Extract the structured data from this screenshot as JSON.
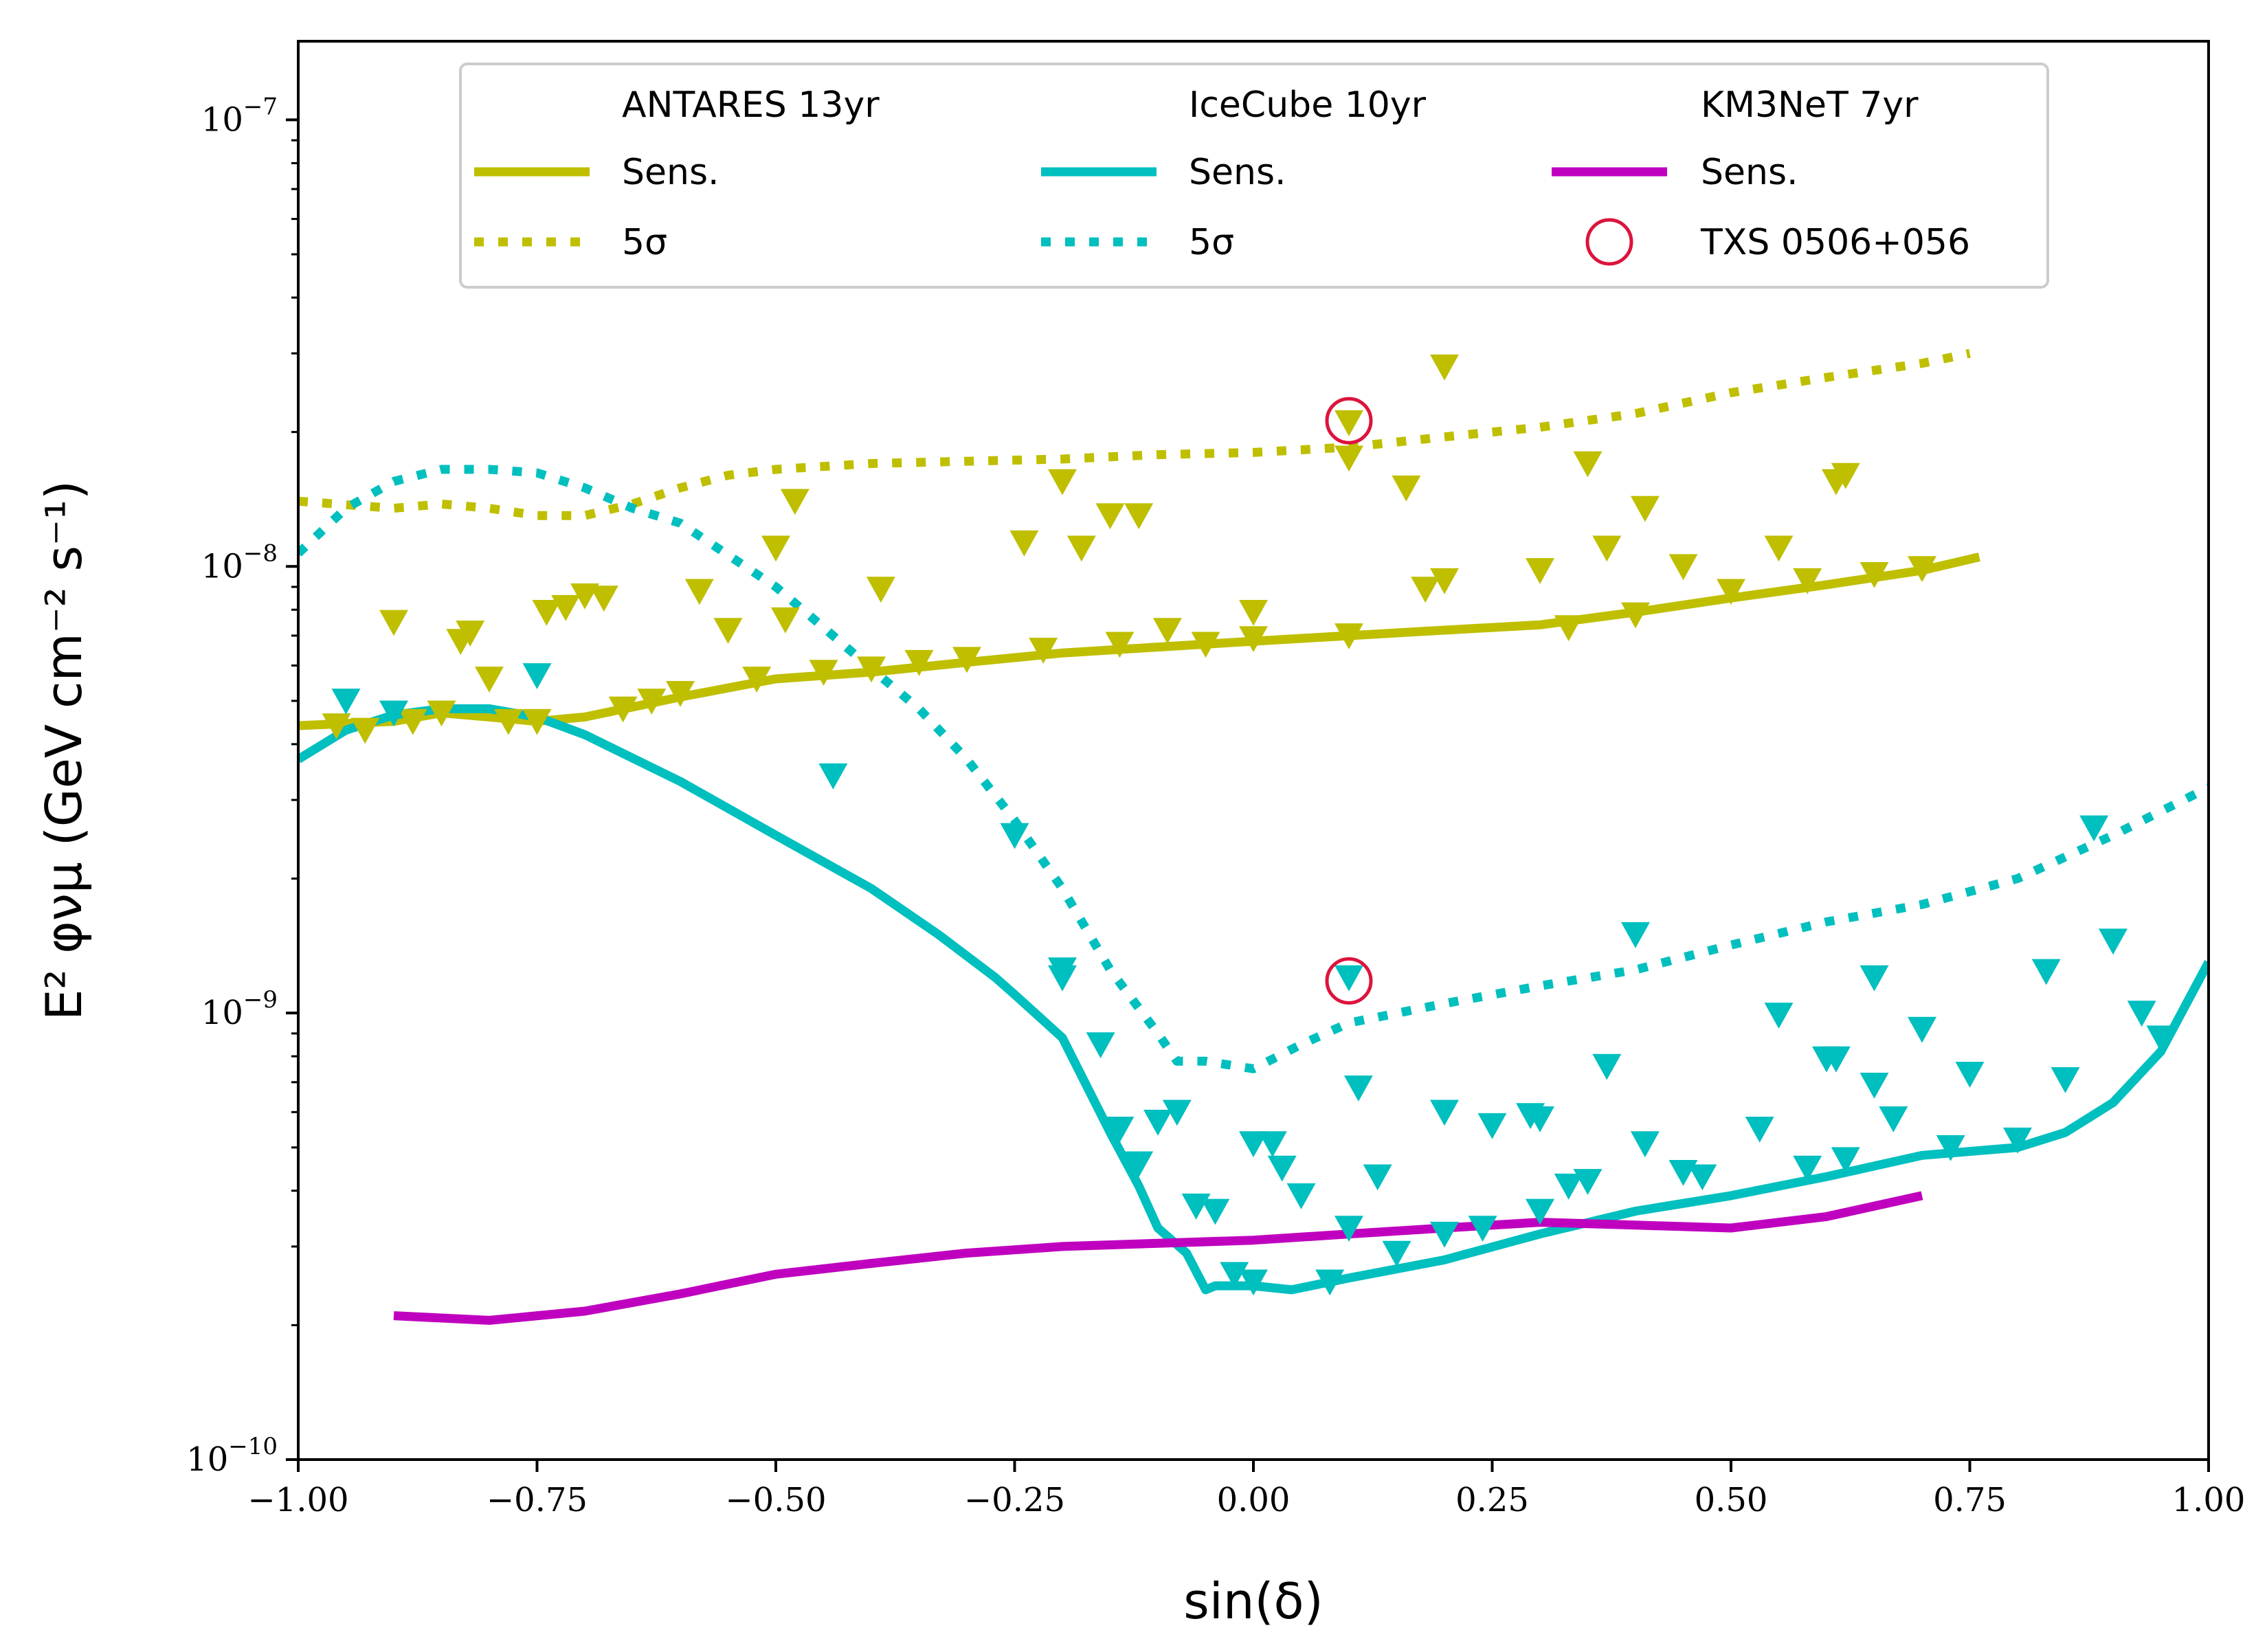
{
  "chart_data": {
    "type": "line",
    "title": "",
    "xlabel": "sin(δ)",
    "ylabel": "E² φνμ (GeV cm⁻² s⁻¹)",
    "y_scale": "log",
    "xlim": [
      -1.0,
      1.0
    ],
    "ylim": [
      1e-10,
      1.5e-07
    ],
    "x_ticks": [
      -1.0,
      -0.75,
      -0.5,
      -0.25,
      0.0,
      0.25,
      0.5,
      0.75,
      1.0
    ],
    "x_tick_labels": [
      "−1.00",
      "−0.75",
      "−0.50",
      "−0.25",
      "0.00",
      "0.25",
      "0.50",
      "0.75",
      "1.00"
    ],
    "y_ticks": [
      1e-10,
      1e-09,
      1e-08,
      1e-07
    ],
    "y_tick_labels": [
      {
        "base": "10",
        "exp": "−10"
      },
      {
        "base": "10",
        "exp": "−9"
      },
      {
        "base": "10",
        "exp": "−8"
      },
      {
        "base": "10",
        "exp": "−7"
      }
    ],
    "colors": {
      "antares": "#bfbf00",
      "icecube": "#00bfbf",
      "km3net": "#bf00bf",
      "txs": "#dc143c"
    },
    "legend": {
      "location": "upper center",
      "columns": [
        {
          "header": "ANTARES 13yr",
          "sens": "Sens.",
          "disc": "5σ"
        },
        {
          "header": "IceCube 10yr",
          "sens": "Sens.",
          "disc": "5σ"
        },
        {
          "header": "KM3NeT 7yr",
          "sens": "Sens.",
          "source": "TXS 0506+056"
        }
      ]
    },
    "series": [
      {
        "name": "ANTARES 13yr Sens.",
        "style": "solid",
        "color": "#bfbf00",
        "x": [
          -1.0,
          -0.9,
          -0.85,
          -0.8,
          -0.75,
          -0.7,
          -0.6,
          -0.5,
          -0.4,
          -0.3,
          -0.2,
          -0.1,
          0.0,
          0.1,
          0.2,
          0.3,
          0.4,
          0.5,
          0.6,
          0.7,
          0.76
        ],
        "y": [
          4.4e-09,
          4.5e-09,
          4.7e-09,
          4.6e-09,
          4.5e-09,
          4.6e-09,
          5.1e-09,
          5.6e-09,
          5.8e-09,
          6.1e-09,
          6.4e-09,
          6.6e-09,
          6.8e-09,
          7e-09,
          7.2e-09,
          7.4e-09,
          7.9e-09,
          8.5e-09,
          9.1e-09,
          9.8e-09,
          1.05e-08
        ]
      },
      {
        "name": "ANTARES 13yr 5σ",
        "style": "dotted",
        "color": "#bfbf00",
        "x": [
          -1.0,
          -0.9,
          -0.85,
          -0.8,
          -0.75,
          -0.7,
          -0.65,
          -0.6,
          -0.55,
          -0.5,
          -0.4,
          -0.3,
          -0.2,
          -0.1,
          0.0,
          0.1,
          0.2,
          0.3,
          0.4,
          0.5,
          0.6,
          0.7,
          0.75
        ],
        "y": [
          1.4e-08,
          1.35e-08,
          1.38e-08,
          1.35e-08,
          1.3e-08,
          1.3e-08,
          1.38e-08,
          1.5e-08,
          1.6e-08,
          1.65e-08,
          1.7e-08,
          1.72e-08,
          1.74e-08,
          1.78e-08,
          1.8e-08,
          1.85e-08,
          1.95e-08,
          2.05e-08,
          2.2e-08,
          2.45e-08,
          2.65e-08,
          2.85e-08,
          3e-08
        ]
      },
      {
        "name": "IceCube 10yr Sens.",
        "style": "solid",
        "color": "#00bfbf",
        "x": [
          -1.0,
          -0.95,
          -0.9,
          -0.85,
          -0.8,
          -0.75,
          -0.7,
          -0.6,
          -0.5,
          -0.4,
          -0.33,
          -0.27,
          -0.25,
          -0.2,
          -0.15,
          -0.12,
          -0.1,
          -0.07,
          -0.05,
          -0.04,
          0.0,
          0.04,
          0.1,
          0.2,
          0.3,
          0.4,
          0.5,
          0.6,
          0.7,
          0.8,
          0.85,
          0.9,
          0.95,
          1.0
        ],
        "y": [
          3.7e-09,
          4.3e-09,
          4.65e-09,
          4.8e-09,
          4.8e-09,
          4.6e-09,
          4.2e-09,
          3.3e-09,
          2.5e-09,
          1.9e-09,
          1.5e-09,
          1.2e-09,
          1.1e-09,
          8.8e-10,
          5.4e-10,
          4.1e-10,
          3.3e-10,
          2.9e-10,
          2.4e-10,
          2.45e-10,
          2.45e-10,
          2.4e-10,
          2.55e-10,
          2.8e-10,
          3.2e-10,
          3.6e-10,
          3.9e-10,
          4.3e-10,
          4.8e-10,
          5e-10,
          5.4e-10,
          6.3e-10,
          8.2e-10,
          1.3e-09
        ]
      },
      {
        "name": "IceCube 10yr 5σ",
        "style": "dotted",
        "color": "#00bfbf",
        "x": [
          -1.0,
          -0.95,
          -0.9,
          -0.85,
          -0.8,
          -0.75,
          -0.7,
          -0.65,
          -0.6,
          -0.5,
          -0.45,
          -0.4,
          -0.35,
          -0.3,
          -0.25,
          -0.2,
          -0.15,
          -0.1,
          -0.08,
          -0.05,
          0.0,
          0.05,
          0.1,
          0.2,
          0.3,
          0.4,
          0.5,
          0.6,
          0.7,
          0.8,
          0.9,
          1.0
        ],
        "y": [
          1.07e-08,
          1.35e-08,
          1.55e-08,
          1.65e-08,
          1.65e-08,
          1.62e-08,
          1.5e-08,
          1.35e-08,
          1.25e-08,
          9e-09,
          7.3e-09,
          5.9e-09,
          4.8e-09,
          3.7e-09,
          2.7e-09,
          1.9e-09,
          1.25e-09,
          9e-10,
          7.8e-10,
          7.8e-10,
          7.5e-10,
          8.5e-10,
          9.5e-10,
          1.05e-09,
          1.15e-09,
          1.25e-09,
          1.42e-09,
          1.6e-09,
          1.75e-09,
          2e-09,
          2.5e-09,
          3.2e-09
        ]
      },
      {
        "name": "KM3NeT 7yr Sens.",
        "style": "solid",
        "color": "#bf00bf",
        "x": [
          -0.9,
          -0.8,
          -0.7,
          -0.6,
          -0.5,
          -0.4,
          -0.3,
          -0.2,
          -0.1,
          0.0,
          0.1,
          0.2,
          0.3,
          0.4,
          0.5,
          0.6,
          0.7
        ],
        "y": [
          2.1e-10,
          2.05e-10,
          2.15e-10,
          2.35e-10,
          2.6e-10,
          2.75e-10,
          2.9e-10,
          3e-10,
          3.05e-10,
          3.1e-10,
          3.2e-10,
          3.3e-10,
          3.4e-10,
          3.35e-10,
          3.3e-10,
          3.5e-10,
          3.9e-10
        ]
      }
    ],
    "antares_limits": [
      [
        -0.96,
        4.4e-09
      ],
      [
        -0.93,
        4.3e-09
      ],
      [
        -0.9,
        7.5e-09
      ],
      [
        -0.88,
        4.5e-09
      ],
      [
        -0.85,
        4.7e-09
      ],
      [
        -0.83,
        6.8e-09
      ],
      [
        -0.82,
        7.1e-09
      ],
      [
        -0.8,
        5.6e-09
      ],
      [
        -0.78,
        4.5e-09
      ],
      [
        -0.75,
        4.5e-09
      ],
      [
        -0.74,
        7.9e-09
      ],
      [
        -0.72,
        8.1e-09
      ],
      [
        -0.7,
        8.6e-09
      ],
      [
        -0.68,
        8.5e-09
      ],
      [
        -0.66,
        4.8e-09
      ],
      [
        -0.63,
        5e-09
      ],
      [
        -0.6,
        5.2e-09
      ],
      [
        -0.58,
        8.8e-09
      ],
      [
        -0.55,
        7.2e-09
      ],
      [
        -0.52,
        5.6e-09
      ],
      [
        -0.5,
        1.1e-08
      ],
      [
        -0.49,
        7.6e-09
      ],
      [
        -0.48,
        1.4e-08
      ],
      [
        -0.45,
        5.8e-09
      ],
      [
        -0.4,
        5.9e-09
      ],
      [
        -0.39,
        8.9e-09
      ],
      [
        -0.35,
        6.1e-09
      ],
      [
        -0.3,
        6.2e-09
      ],
      [
        -0.24,
        1.13e-08
      ],
      [
        -0.22,
        6.5e-09
      ],
      [
        -0.2,
        1.55e-08
      ],
      [
        -0.18,
        1.1e-08
      ],
      [
        -0.15,
        1.3e-08
      ],
      [
        -0.14,
        6.7e-09
      ],
      [
        -0.12,
        1.3e-08
      ],
      [
        -0.09,
        7.2e-09
      ],
      [
        -0.05,
        6.7e-09
      ],
      [
        0.0,
        6.9e-09
      ],
      [
        0.0,
        7.9e-09
      ],
      [
        0.1,
        2.1e-08
      ],
      [
        0.1,
        1.75e-08
      ],
      [
        0.1,
        7e-09
      ],
      [
        0.16,
        1.5e-08
      ],
      [
        0.18,
        8.9e-09
      ],
      [
        0.2,
        2.8e-08
      ],
      [
        0.2,
        9.3e-09
      ],
      [
        0.3,
        9.8e-09
      ],
      [
        0.33,
        7.3e-09
      ],
      [
        0.35,
        1.7e-08
      ],
      [
        0.37,
        1.1e-08
      ],
      [
        0.4,
        7.8e-09
      ],
      [
        0.41,
        1.35e-08
      ],
      [
        0.45,
        1e-08
      ],
      [
        0.5,
        8.8e-09
      ],
      [
        0.55,
        1.1e-08
      ],
      [
        0.58,
        9.3e-09
      ],
      [
        0.61,
        1.55e-08
      ],
      [
        0.62,
        1.6e-08
      ],
      [
        0.65,
        9.6e-09
      ],
      [
        0.7,
        9.9e-09
      ]
    ],
    "icecube_limits": [
      [
        -0.95,
        5e-09
      ],
      [
        -0.9,
        4.7e-09
      ],
      [
        -0.75,
        5.7e-09
      ],
      [
        -0.44,
        3.4e-09
      ],
      [
        -0.25,
        2.5e-09
      ],
      [
        -0.2,
        1.25e-09
      ],
      [
        -0.2,
        1.2e-09
      ],
      [
        -0.16,
        8.5e-10
      ],
      [
        -0.14,
        5.5e-10
      ],
      [
        -0.12,
        4.6e-10
      ],
      [
        -0.1,
        5.7e-10
      ],
      [
        -0.08,
        6e-10
      ],
      [
        -0.06,
        3.7e-10
      ],
      [
        -0.04,
        3.6e-10
      ],
      [
        -0.02,
        2.6e-10
      ],
      [
        0.0,
        5.1e-10
      ],
      [
        0.02,
        5.1e-10
      ],
      [
        0.0,
        2.5e-10
      ],
      [
        0.03,
        4.5e-10
      ],
      [
        0.05,
        3.9e-10
      ],
      [
        0.08,
        2.5e-10
      ],
      [
        0.1,
        1.2e-09
      ],
      [
        0.1,
        3.3e-10
      ],
      [
        0.11,
        6.8e-10
      ],
      [
        0.13,
        4.3e-10
      ],
      [
        0.15,
        2.9e-10
      ],
      [
        0.2,
        3.2e-10
      ],
      [
        0.2,
        6e-10
      ],
      [
        0.24,
        3.3e-10
      ],
      [
        0.25,
        5.6e-10
      ],
      [
        0.29,
        5.9e-10
      ],
      [
        0.3,
        5.8e-10
      ],
      [
        0.3,
        3.6e-10
      ],
      [
        0.33,
        4.1e-10
      ],
      [
        0.35,
        4.2e-10
      ],
      [
        0.37,
        7.6e-10
      ],
      [
        0.4,
        1.5e-09
      ],
      [
        0.41,
        5.1e-10
      ],
      [
        0.45,
        4.4e-10
      ],
      [
        0.47,
        4.3e-10
      ],
      [
        0.53,
        5.5e-10
      ],
      [
        0.55,
        9.9e-10
      ],
      [
        0.58,
        4.5e-10
      ],
      [
        0.6,
        7.9e-10
      ],
      [
        0.61,
        7.9e-10
      ],
      [
        0.62,
        4.7e-10
      ],
      [
        0.65,
        6.9e-10
      ],
      [
        0.65,
        1.2e-09
      ],
      [
        0.67,
        5.8e-10
      ],
      [
        0.7,
        9.2e-10
      ],
      [
        0.73,
        5e-10
      ],
      [
        0.75,
        7.3e-10
      ],
      [
        0.8,
        5.2e-10
      ],
      [
        0.83,
        1.24e-09
      ],
      [
        0.85,
        7.1e-10
      ],
      [
        0.88,
        2.6e-09
      ],
      [
        0.9,
        1.45e-09
      ],
      [
        0.93,
        1e-09
      ],
      [
        0.95,
        8.8e-10
      ]
    ],
    "txs_markers": [
      [
        0.1,
        2.12e-08
      ],
      [
        0.1,
        1.18e-09
      ]
    ]
  }
}
